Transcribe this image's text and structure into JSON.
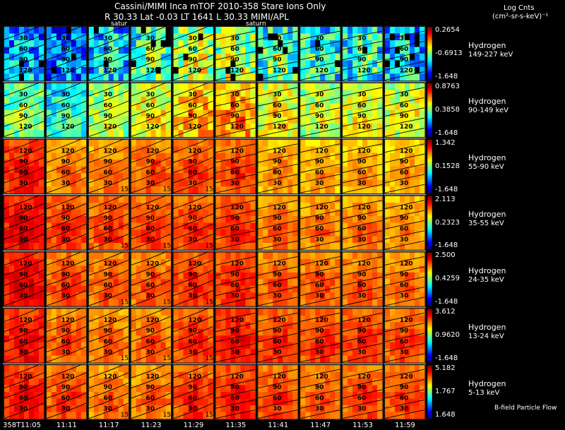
{
  "header": {
    "title": "Cassini/MIMI Inca mTOF  2010-358    Stare    Ions Only",
    "info": "R            30.33 Lat -0.03 LT 1641  L          30.33   MIMI/APL",
    "unit_title": "Log Cnts",
    "unit_units": "(cm²-sr-s-keV)⁻¹",
    "saturn_label": "satur",
    "saturn_label2": "saturn"
  },
  "flow_label": "B-field Particle Flow",
  "chart_data": {
    "type": "heatmap",
    "title": "Cassini/MIMI Inca mTOF  2010-358    Stare    Ions Only",
    "x_tick_labels": [
      "358T11:05",
      "11:11",
      "11:17",
      "11:23",
      "11:29",
      "11:35",
      "11:41",
      "11:47",
      "11:53",
      "11:59"
    ],
    "contour_labels": [
      "30",
      "60",
      "90",
      "120"
    ],
    "edge_labels": [
      "15"
    ],
    "rows": [
      {
        "species": "Hydrogen",
        "energy": "149-227 keV",
        "max": "0.2654",
        "mid": "-0.6913",
        "min": "-1.648",
        "intensity": [
          0.3,
          0.25,
          0.35,
          0.45,
          0.55,
          0.55,
          0.45,
          0.4,
          0.4,
          0.35
        ]
      },
      {
        "species": "Hydrogen",
        "energy": "90-149 keV",
        "max": "0.8763",
        "mid": "0.3858",
        "min": "-1.648",
        "intensity": [
          0.5,
          0.4,
          0.55,
          0.62,
          0.7,
          0.72,
          0.62,
          0.58,
          0.6,
          0.6
        ]
      },
      {
        "species": "Hydrogen",
        "energy": "55-90 keV",
        "max": "1.342",
        "mid": "0.1528",
        "min": "-1.648",
        "intensity": [
          0.85,
          0.75,
          0.75,
          0.78,
          0.8,
          0.8,
          0.72,
          0.7,
          0.7,
          0.7
        ]
      },
      {
        "species": "Hydrogen",
        "energy": "35-55 keV",
        "max": "2.113",
        "mid": "0.2323",
        "min": "-1.648",
        "intensity": [
          0.88,
          0.82,
          0.8,
          0.8,
          0.82,
          0.82,
          0.76,
          0.75,
          0.75,
          0.73
        ]
      },
      {
        "species": "Hydrogen",
        "energy": "24-35 keV",
        "max": "2.500",
        "mid": "0.4259",
        "min": "-1.648",
        "intensity": [
          0.88,
          0.8,
          0.78,
          0.78,
          0.82,
          0.83,
          0.78,
          0.78,
          0.78,
          0.76
        ]
      },
      {
        "species": "Hydrogen",
        "energy": "13-24 keV",
        "max": "3.612",
        "mid": "0.9620",
        "min": "-1.648",
        "intensity": [
          0.86,
          0.78,
          0.76,
          0.77,
          0.82,
          0.85,
          0.82,
          0.82,
          0.82,
          0.8
        ]
      },
      {
        "species": "Hydrogen",
        "energy": "5-13 keV",
        "max": "5.182",
        "mid": "1.767",
        "min": "1.648",
        "intensity": [
          0.85,
          0.8,
          0.76,
          0.76,
          0.82,
          0.84,
          0.8,
          0.78,
          0.8,
          0.8
        ]
      }
    ]
  }
}
